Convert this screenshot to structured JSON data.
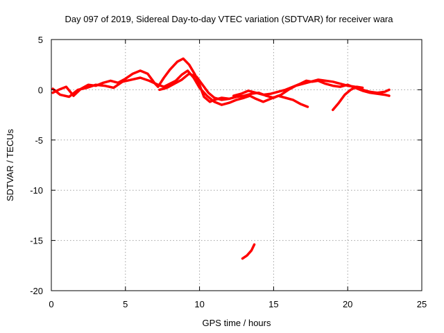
{
  "chart_data": {
    "type": "line",
    "title": "Day 097 of 2019, Sidereal Day-to-day VTEC variation (SDTVAR) for receiver wara",
    "xlabel": "GPS time / hours",
    "ylabel": "SDTVAR / TECUs",
    "xlim": [
      0,
      25
    ],
    "ylim": [
      -20,
      5
    ],
    "xticks": [
      0,
      5,
      10,
      15,
      20,
      25
    ],
    "yticks": [
      -20,
      -15,
      -10,
      -5,
      0,
      5
    ],
    "grid": true,
    "color": "#ff0000",
    "series": [
      {
        "name": "track-1",
        "x": [
          0.1,
          0.5,
          1.0,
          1.5,
          2.0,
          2.5,
          3.0,
          3.5,
          4.0,
          4.5,
          5.0,
          5.5,
          6.0,
          6.5,
          7.0,
          7.2,
          7.6,
          8.0,
          8.5,
          8.9,
          9.3,
          9.7,
          10.0,
          10.3,
          10.7,
          11.0,
          11.5,
          12.0
        ],
        "y": [
          -0.3,
          0.0,
          0.3,
          -0.6,
          0.1,
          0.5,
          0.4,
          0.7,
          0.9,
          0.7,
          1.1,
          1.6,
          1.9,
          1.6,
          0.6,
          0.3,
          1.2,
          2.0,
          2.8,
          3.1,
          2.5,
          1.5,
          0.5,
          -0.7,
          -1.2,
          -1.0,
          -0.8,
          -0.9
        ]
      },
      {
        "name": "track-2",
        "x": [
          0.1,
          0.6,
          1.2,
          1.8,
          2.4,
          3.0,
          3.6,
          4.2,
          4.8,
          5.4,
          6.0,
          6.6,
          7.2,
          7.6,
          8.0,
          8.4,
          8.8,
          9.2,
          9.6,
          10.0,
          10.5,
          11.0,
          11.5,
          12.0,
          12.5,
          13.0,
          13.4,
          13.8,
          14.3,
          14.8,
          15.3,
          15.8,
          16.3,
          16.8,
          17.3
        ],
        "y": [
          0.1,
          -0.5,
          -0.7,
          0.0,
          0.2,
          0.5,
          0.4,
          0.2,
          0.8,
          1.0,
          1.2,
          0.9,
          0.5,
          0.3,
          0.6,
          0.9,
          1.5,
          1.9,
          1.2,
          0.2,
          -0.6,
          -1.2,
          -1.5,
          -1.3,
          -1.0,
          -0.8,
          -0.6,
          -0.9,
          -1.2,
          -0.9,
          -0.6,
          -0.8,
          -1.0,
          -1.4,
          -1.7
        ]
      },
      {
        "name": "track-3",
        "x": [
          7.3,
          7.8,
          8.3,
          8.8,
          9.3,
          9.8,
          10.2,
          10.6,
          11.0,
          11.5,
          12.0,
          12.5,
          13.0,
          13.5,
          14.0,
          14.5,
          15.0,
          15.5,
          16.0,
          16.5,
          17.0,
          17.5,
          18.0,
          18.5,
          19.0,
          19.5,
          20.0,
          20.5,
          21.0,
          21.5,
          22.0,
          22.5,
          22.8
        ],
        "y": [
          0.0,
          0.2,
          0.6,
          1.0,
          1.6,
          1.3,
          0.5,
          -0.3,
          -0.8,
          -1.0,
          -0.9,
          -0.7,
          -0.6,
          -0.4,
          -0.3,
          -0.6,
          -0.8,
          -0.5,
          0.0,
          0.4,
          0.6,
          0.8,
          1.0,
          0.9,
          0.8,
          0.6,
          0.4,
          0.3,
          0.0,
          -0.2,
          -0.3,
          -0.2,
          0.0
        ]
      },
      {
        "name": "track-4",
        "x": [
          12.3,
          12.8,
          13.3,
          13.8,
          14.3,
          14.8,
          15.3,
          15.8,
          16.3,
          16.8,
          17.2,
          17.6,
          18.0,
          18.5,
          19.0,
          19.5,
          20.0,
          20.5,
          21.0,
          21.5,
          22.0,
          22.5,
          22.8
        ],
        "y": [
          -0.6,
          -0.4,
          -0.1,
          -0.3,
          -0.5,
          -0.4,
          -0.2,
          0.0,
          0.3,
          0.6,
          0.9,
          0.8,
          0.9,
          0.6,
          0.4,
          0.3,
          0.5,
          0.2,
          -0.1,
          -0.3,
          -0.4,
          -0.5,
          -0.6
        ]
      },
      {
        "name": "track-5",
        "x": [
          19.0,
          19.4,
          19.8,
          20.2,
          20.6,
          21.0
        ],
        "y": [
          -2.0,
          -1.3,
          -0.5,
          0.0,
          0.3,
          0.2
        ]
      },
      {
        "name": "track-6",
        "x": [
          12.9,
          13.2,
          13.5,
          13.7
        ],
        "y": [
          -16.8,
          -16.5,
          -16.0,
          -15.4
        ]
      }
    ]
  }
}
